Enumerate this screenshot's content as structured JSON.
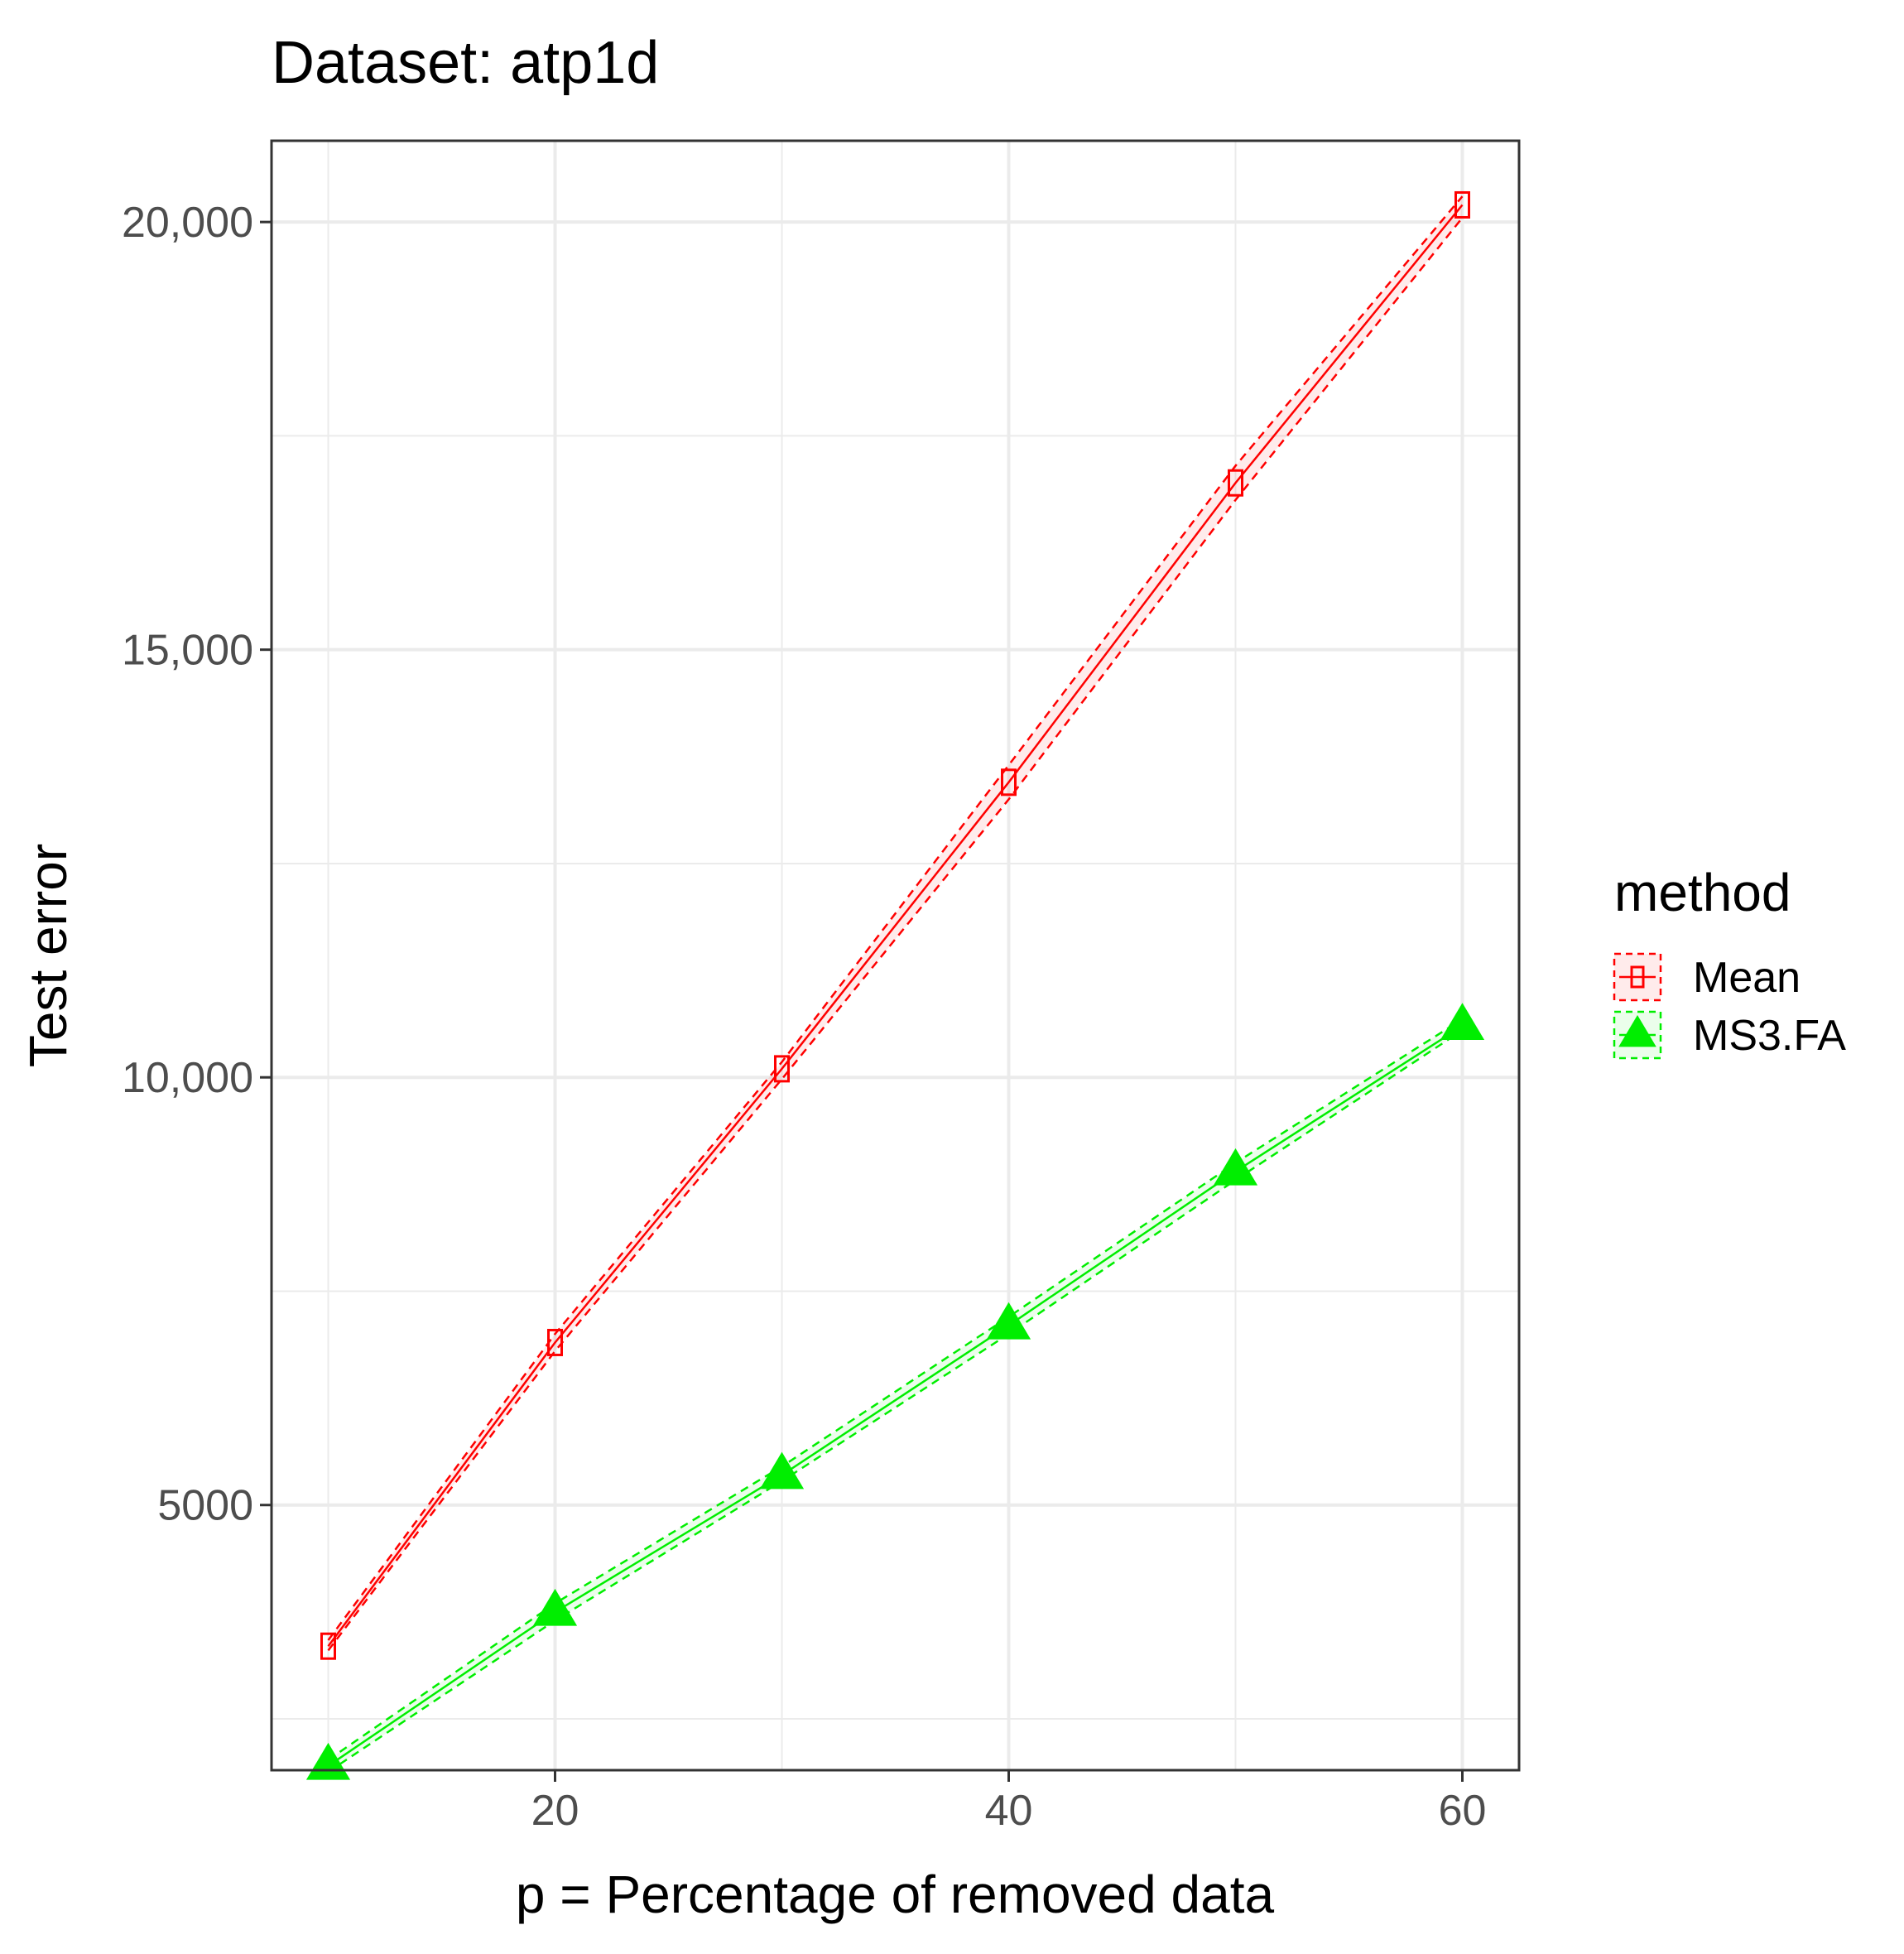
{
  "chart_data": {
    "type": "line",
    "title": "Dataset: atp1d",
    "xlabel": "p = Percentage of removed data",
    "ylabel": "Test error",
    "xlim": [
      7.5,
      62.5
    ],
    "ylim": [
      1900,
      20950
    ],
    "x_ticks": [
      20,
      40,
      60
    ],
    "x_tick_labels": [
      "20",
      "40",
      "60"
    ],
    "y_ticks": [
      5000,
      10000,
      15000,
      20000
    ],
    "y_tick_labels": [
      "5000",
      "10,000",
      "15,000",
      "20,000"
    ],
    "grid": true,
    "legend": {
      "title": "method",
      "position": "right",
      "entries": [
        "Mean",
        "MS3.FA"
      ]
    },
    "x": [
      10,
      20,
      30,
      40,
      50,
      60
    ],
    "series": [
      {
        "name": "Mean",
        "color": "#ff0000",
        "marker": "open-square",
        "values": [
          3350,
          6900,
          10100,
          13450,
          16950,
          20200
        ],
        "lower": [
          3300,
          6800,
          9980,
          13250,
          16750,
          20050
        ],
        "upper": [
          3420,
          7000,
          10180,
          13650,
          17150,
          20300
        ]
      },
      {
        "name": "MS3.FA",
        "color": "#00ee00",
        "marker": "filled-triangle",
        "values": [
          1950,
          3750,
          5350,
          7100,
          8900,
          10600
        ],
        "lower": [
          1880,
          3650,
          5280,
          7000,
          8800,
          10550
        ],
        "upper": [
          2020,
          3850,
          5450,
          7200,
          9000,
          10680
        ]
      }
    ]
  }
}
